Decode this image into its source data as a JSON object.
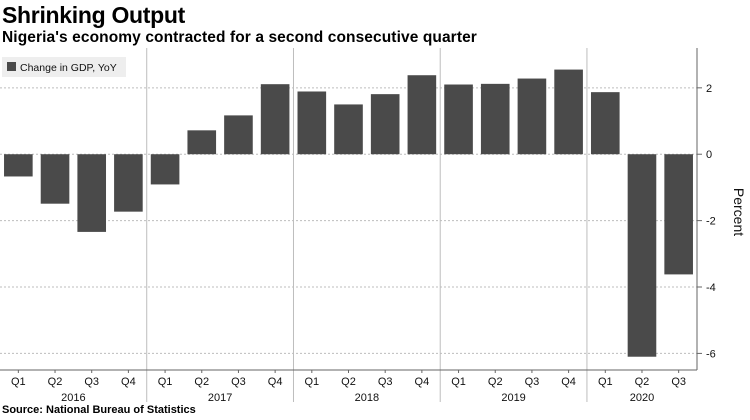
{
  "header": {
    "title": "Shrinking Output",
    "subtitle": "Nigeria's economy contracted for a second consecutive quarter"
  },
  "footer": {
    "source": "Source: National Bureau of Statistics"
  },
  "colors": {
    "bar": "#4a4a4a",
    "grid": "#bdbdbd",
    "axis": "#666666",
    "background": "#ffffff"
  },
  "chart_data": {
    "type": "bar",
    "title": "Shrinking Output",
    "subtitle": "Nigeria's economy contracted for a second consecutive quarter",
    "xlabel": "",
    "ylabel": "Percent",
    "ylim": [
      -6.5,
      3.2
    ],
    "yticks": [
      2,
      0,
      -2,
      -4,
      -6
    ],
    "ytick_labels": [
      "2",
      "0",
      "-2",
      "-4",
      "-6"
    ],
    "grid": true,
    "legend_position": "top-left",
    "series": [
      {
        "name": "Change in GDP, YoY",
        "values": [
          -0.67,
          -1.49,
          -2.34,
          -1.73,
          -0.91,
          0.72,
          1.17,
          2.11,
          1.89,
          1.5,
          1.81,
          2.38,
          2.1,
          2.12,
          2.28,
          2.55,
          1.87,
          -6.1,
          -3.62
        ]
      }
    ],
    "categories": [
      "Q1",
      "Q2",
      "Q3",
      "Q4",
      "Q1",
      "Q2",
      "Q3",
      "Q4",
      "Q1",
      "Q2",
      "Q3",
      "Q4",
      "Q1",
      "Q2",
      "Q3",
      "Q4",
      "Q1",
      "Q2",
      "Q3"
    ],
    "years": [
      {
        "label": "2016",
        "start": 0,
        "end": 3
      },
      {
        "label": "2017",
        "start": 4,
        "end": 7
      },
      {
        "label": "2018",
        "start": 8,
        "end": 11
      },
      {
        "label": "2019",
        "start": 12,
        "end": 15
      },
      {
        "label": "2020",
        "start": 16,
        "end": 18
      }
    ]
  }
}
